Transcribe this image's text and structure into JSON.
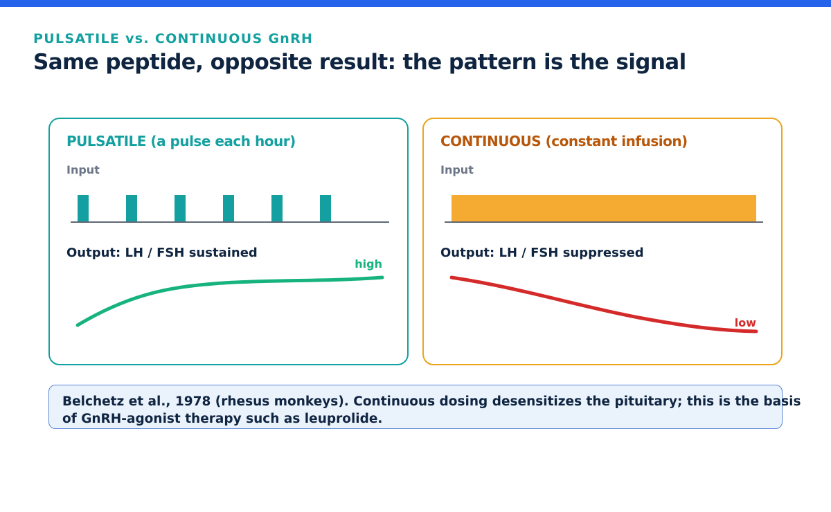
{
  "header": {
    "eyebrow": "PULSATILE vs. CONTINUOUS GnRH",
    "title": "Same peptide, opposite result: the pattern is the signal"
  },
  "panels": {
    "pulsatile": {
      "title": "PULSATILE (a pulse each hour)",
      "input_label": "Input",
      "output_label": "Output: LH / FSH sustained",
      "end_label": "high",
      "pulse_count": 6,
      "color": "#14a0a0",
      "curve_color": "#16b37e"
    },
    "continuous": {
      "title": "CONTINUOUS (constant infusion)",
      "input_label": "Input",
      "output_label": "Output: LH / FSH suppressed",
      "end_label": "low",
      "color": "#f5ab32",
      "curve_color": "#d42a2a"
    }
  },
  "note": {
    "text": "Belchetz et al., 1978 (rhesus monkeys). Continuous dosing desensitizes the pituitary; this is the basis of GnRH-agonist therapy such as leuprolide."
  }
}
